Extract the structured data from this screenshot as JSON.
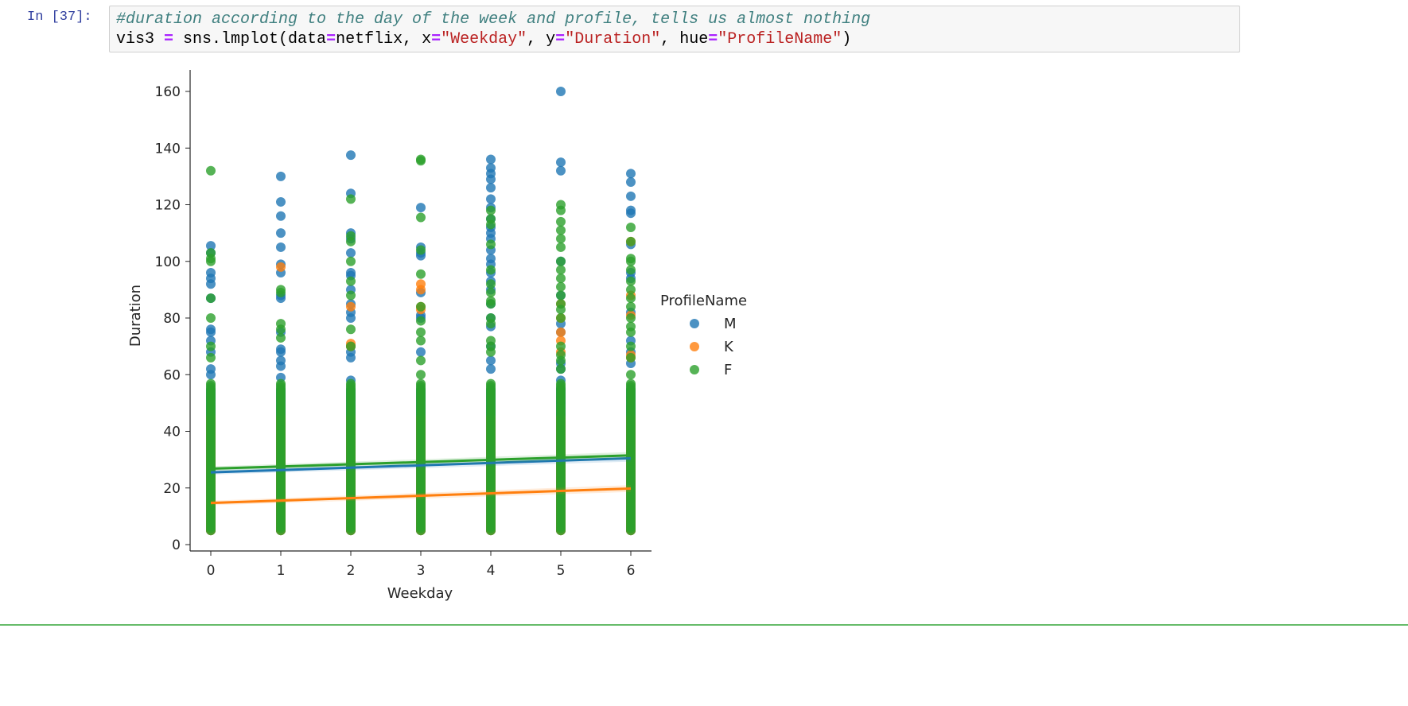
{
  "cell": {
    "prompt": "In [37]:",
    "comment": "#duration according to the day of the week and profile, tells us almost nothing",
    "code": [
      {
        "t": "vis3 ",
        "c": ""
      },
      {
        "t": "=",
        "c": "op"
      },
      {
        "t": " sns.lmplot(data",
        "c": ""
      },
      {
        "t": "=",
        "c": "op"
      },
      {
        "t": "netflix, x",
        "c": ""
      },
      {
        "t": "=",
        "c": "op"
      },
      {
        "t": "\"Weekday\"",
        "c": "st"
      },
      {
        "t": ", y",
        "c": ""
      },
      {
        "t": "=",
        "c": "op"
      },
      {
        "t": "\"Duration\"",
        "c": "st"
      },
      {
        "t": ", hue",
        "c": ""
      },
      {
        "t": "=",
        "c": "op"
      },
      {
        "t": "\"ProfileName\"",
        "c": "st"
      },
      {
        "t": ")",
        "c": ""
      }
    ]
  },
  "chart_data": {
    "type": "scatter",
    "title": "",
    "xlabel": "Weekday",
    "ylabel": "Duration",
    "xlim": [
      -0.3,
      6.3
    ],
    "ylim": [
      -2,
      167
    ],
    "xticks": [
      "0",
      "1",
      "2",
      "3",
      "4",
      "5",
      "6"
    ],
    "yticks": [
      "0",
      "20",
      "40",
      "60",
      "80",
      "100",
      "120",
      "140",
      "160"
    ],
    "grid": false,
    "legend": {
      "title": "ProfileName",
      "placement": "right"
    },
    "series": [
      {
        "name": "M",
        "color": "#1f77b4",
        "dense_range": [
          5,
          55
        ],
        "regression": {
          "x": [
            0,
            6
          ],
          "y": [
            25.5,
            30.5
          ]
        },
        "outliers": {
          "0": [
            105.5,
            103,
            96,
            94,
            92,
            87,
            76,
            75,
            72,
            68,
            62,
            60
          ],
          "1": [
            130,
            121,
            116,
            110,
            105,
            99,
            96,
            88,
            87,
            75,
            69,
            68,
            65,
            63,
            59
          ],
          "2": [
            137.5,
            124,
            110,
            108,
            103,
            96,
            95,
            90,
            85,
            82,
            80,
            70,
            68,
            66,
            58
          ],
          "3": [
            119,
            105,
            103,
            102,
            89,
            81,
            80,
            68
          ],
          "4": [
            136,
            133,
            131,
            129,
            126,
            122,
            119,
            115,
            112,
            110,
            108,
            104,
            101,
            99,
            96,
            93,
            90,
            85,
            80,
            77,
            70,
            65,
            62
          ],
          "5": [
            160,
            135,
            132,
            100,
            88,
            78,
            75,
            64,
            62,
            58,
            55,
            50,
            46
          ],
          "6": [
            131,
            128,
            123,
            118,
            117,
            106,
            96,
            94,
            82,
            72,
            68,
            64
          ]
        }
      },
      {
        "name": "K",
        "color": "#ff7f0e",
        "dense_range": [
          5,
          45
        ],
        "regression": {
          "x": [
            0,
            6
          ],
          "y": [
            14.7,
            19.8
          ]
        },
        "outliers": {
          "0": [],
          "1": [
            98
          ],
          "2": [
            84,
            71,
            70
          ],
          "3": [
            92,
            90,
            84,
            83
          ],
          "4": [],
          "5": [
            85,
            80,
            75,
            72,
            68
          ],
          "6": [
            107,
            88,
            81,
            67,
            66
          ]
        }
      },
      {
        "name": "F",
        "color": "#2ca02c",
        "dense_range": [
          5,
          57
        ],
        "regression": {
          "x": [
            0,
            6
          ],
          "y": [
            26.8,
            31.5
          ]
        },
        "outliers": {
          "0": [
            132,
            103,
            101,
            100,
            87,
            80,
            70,
            66
          ],
          "1": [
            90,
            89,
            78,
            76,
            73
          ],
          "2": [
            122,
            109,
            107,
            100,
            93,
            88,
            76,
            70
          ],
          "3": [
            136,
            135.5,
            115.5,
            104,
            95.5,
            84,
            79,
            75,
            72,
            65,
            60
          ],
          "4": [
            118,
            115,
            113,
            106,
            97,
            92,
            89,
            86,
            85,
            80,
            78,
            72,
            70,
            68
          ],
          "5": [
            120,
            118,
            114,
            111,
            108,
            105,
            100,
            97,
            94,
            91,
            88,
            85,
            83,
            80,
            70,
            67,
            65,
            62
          ],
          "6": [
            112,
            107,
            101,
            100,
            97,
            93,
            90,
            87,
            84,
            80,
            77,
            75,
            70,
            66,
            60
          ]
        }
      }
    ]
  }
}
